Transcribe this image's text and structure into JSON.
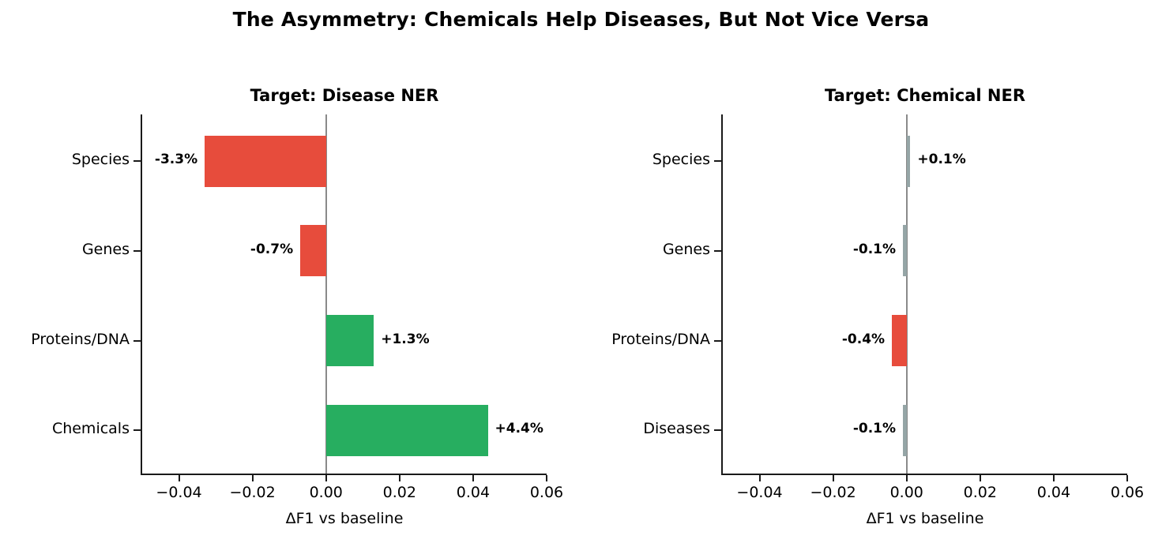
{
  "figure": {
    "title": "The Asymmetry: Chemicals Help Diseases, But Not Vice Versa",
    "background_color": "#ffffff",
    "text_color": "#000000"
  },
  "colors": {
    "negative_bar": "#e74c3c",
    "positive_bar": "#27ae60",
    "neutral_bar": "#95a5a6",
    "zero_line": "#8a8a8a",
    "axis": "#1a1a1a"
  },
  "chart_data": [
    {
      "type": "bar",
      "orientation": "horizontal",
      "title": "Target: Disease NER",
      "xlabel": "ΔF1 vs baseline",
      "xlim": [
        -0.05,
        0.06
      ],
      "xticks": [
        -0.04,
        -0.02,
        0.0,
        0.02,
        0.04,
        0.06
      ],
      "xtick_labels": [
        "−0.04",
        "−0.02",
        "0.00",
        "0.02",
        "0.04",
        "0.06"
      ],
      "categories": [
        "Species",
        "Genes",
        "Proteins/DNA",
        "Chemicals"
      ],
      "values": [
        -0.033,
        -0.007,
        0.013,
        0.044
      ],
      "bar_labels": [
        "-3.3%",
        "-0.7%",
        "+1.3%",
        "+4.4%"
      ],
      "bar_colors": [
        "#e74c3c",
        "#e74c3c",
        "#27ae60",
        "#27ae60"
      ],
      "zero_line": true,
      "grid": false,
      "legend": null
    },
    {
      "type": "bar",
      "orientation": "horizontal",
      "title": "Target: Chemical NER",
      "xlabel": "ΔF1 vs baseline",
      "xlim": [
        -0.05,
        0.06
      ],
      "xticks": [
        -0.04,
        -0.02,
        0.0,
        0.02,
        0.04,
        0.06
      ],
      "xtick_labels": [
        "−0.04",
        "−0.02",
        "0.00",
        "0.02",
        "0.04",
        "0.06"
      ],
      "categories": [
        "Species",
        "Genes",
        "Proteins/DNA",
        "Diseases"
      ],
      "values": [
        0.001,
        -0.001,
        -0.004,
        -0.001
      ],
      "bar_labels": [
        "+0.1%",
        "-0.1%",
        "-0.4%",
        "-0.1%"
      ],
      "bar_colors": [
        "#95a5a6",
        "#95a5a6",
        "#e74c3c",
        "#95a5a6"
      ],
      "zero_line": true,
      "grid": false,
      "legend": null
    }
  ]
}
